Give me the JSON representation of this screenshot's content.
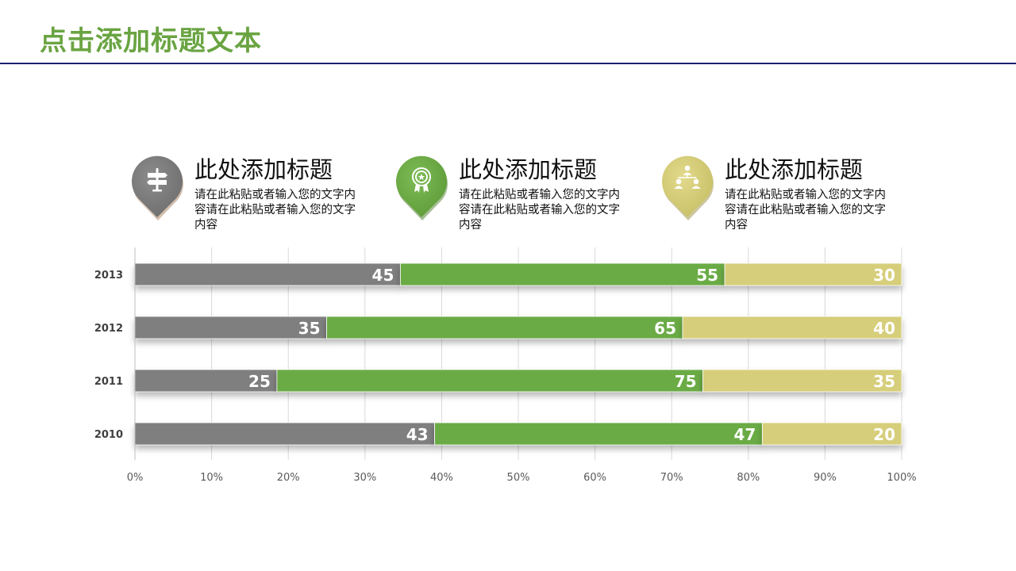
{
  "header": {
    "title": "点击添加标题文本"
  },
  "features": [
    {
      "icon": "signpost-icon",
      "color": "#7a7a7a",
      "heading": "此处添加标题",
      "desc": "请在此粘贴或者输入您的文字内容请在此粘贴或者输入您的文字内容"
    },
    {
      "icon": "award-badge-icon",
      "color": "#6aa744",
      "heading": "此处添加标题",
      "desc": "请在此粘贴或者输入您的文字内容请在此粘贴或者输入您的文字内容"
    },
    {
      "icon": "team-hierarchy-icon",
      "color": "#d7cd78",
      "heading": "此处添加标题",
      "desc": "请在此粘贴或者输入您的文字内容请在此粘贴或者输入您的文字内容"
    }
  ],
  "chart_data": {
    "type": "bar",
    "orientation": "horizontal",
    "stacked": "percent",
    "categories": [
      "2013",
      "2012",
      "2011",
      "2010"
    ],
    "series": [
      {
        "values": [
          45,
          35,
          25,
          43
        ],
        "color": "#7f7f7f"
      },
      {
        "values": [
          55,
          65,
          75,
          47
        ],
        "color": "#6aab45"
      },
      {
        "values": [
          30,
          40,
          35,
          20
        ],
        "color": "#d6ce7a"
      }
    ],
    "x_ticks": [
      "0%",
      "10%",
      "20%",
      "30%",
      "40%",
      "50%",
      "60%",
      "70%",
      "80%",
      "90%",
      "100%"
    ],
    "xlim": [
      0,
      100
    ],
    "grid": true,
    "data_labels": true,
    "legend": "none"
  }
}
